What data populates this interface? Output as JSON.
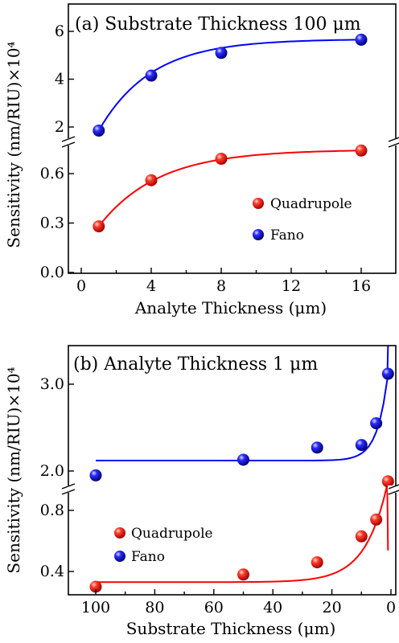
{
  "chart_data": [
    {
      "type": "scatter",
      "title": "(a) Substrate Thickness 100 μm",
      "xlabel": "Analyte Thickness (μm)",
      "ylabel": "Sensitivity (nm/RIU)×10⁴",
      "xlim": [
        -1,
        18
      ],
      "x_ticks": [
        "0",
        "4",
        "8",
        "12",
        "16"
      ],
      "y_ticks_upper": [
        "2",
        "4",
        "6"
      ],
      "y_ticks_lower": [
        "0.0",
        "0.3",
        "0.6"
      ],
      "broken_y_axis": {
        "lower_range": [
          0.0,
          0.75
        ],
        "upper_range": [
          1.2,
          6.6
        ]
      },
      "legend": {
        "placement": "right-middle",
        "entries": [
          "Quadrupole",
          "Fano"
        ]
      },
      "series": [
        {
          "name": "Quadrupole",
          "color": "#e8201c",
          "fit_color": "#ff0000",
          "x": [
            1,
            4,
            8,
            16
          ],
          "y": [
            0.28,
            0.56,
            0.69,
            0.74
          ]
        },
        {
          "name": "Fano",
          "color": "#1b1bd6",
          "fit_color": "#0000ff",
          "x": [
            1,
            4,
            8,
            16
          ],
          "y": [
            1.85,
            4.15,
            5.1,
            5.65
          ]
        }
      ]
    },
    {
      "type": "scatter",
      "title": "(b) Analyte Thickness 1 μm",
      "xlabel": "Substrate Thickness (μm)",
      "ylabel": "Sensitivity (nm/RIU)×10⁴",
      "xlim": [
        105,
        -2
      ],
      "x_ticks": [
        "100",
        "80",
        "60",
        "40",
        "20",
        "0"
      ],
      "y_ticks_upper": [
        "2.0",
        "3.0"
      ],
      "y_ticks_lower": [
        "0.4",
        "0.8"
      ],
      "broken_y_axis": {
        "lower_range": [
          0.25,
          1.06
        ],
        "upper_range": [
          1.5,
          3.4
        ]
      },
      "legend": {
        "placement": "left-middle",
        "entries": [
          "Quadrupole",
          "Fano"
        ]
      },
      "series": [
        {
          "name": "Quadrupole",
          "color": "#e8201c",
          "fit_color": "#ff0000",
          "x": [
            100,
            50,
            25,
            10,
            5,
            1
          ],
          "y": [
            0.3,
            0.38,
            0.46,
            0.63,
            0.74,
            0.99
          ]
        },
        {
          "name": "Fano",
          "color": "#1b1bd6",
          "fit_color": "#0000ff",
          "x": [
            100,
            50,
            25,
            10,
            5,
            1
          ],
          "y": [
            1.95,
            2.13,
            2.27,
            2.3,
            2.55,
            3.12
          ]
        }
      ]
    }
  ]
}
